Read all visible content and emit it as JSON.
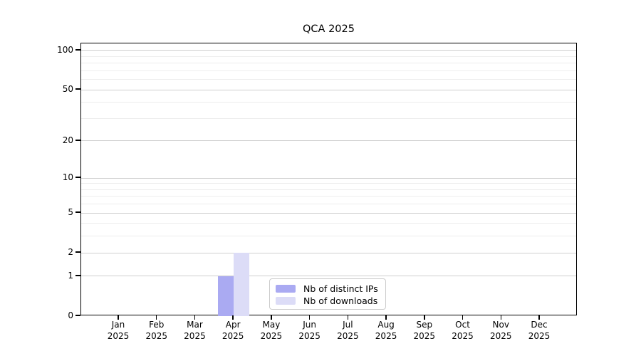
{
  "chart_data": {
    "type": "bar",
    "title": "QCA 2025",
    "categories": [
      "Jan",
      "Feb",
      "Mar",
      "Apr",
      "May",
      "Jun",
      "Jul",
      "Aug",
      "Sep",
      "Oct",
      "Nov",
      "Dec"
    ],
    "x_year": "2025",
    "series": [
      {
        "name": "Nb of distinct IPs",
        "color": "#aaaaf2",
        "values": [
          0,
          0,
          0,
          1,
          0,
          0,
          0,
          0,
          0,
          0,
          0,
          0
        ]
      },
      {
        "name": "Nb of downloads",
        "color": "#dcdcf7",
        "values": [
          0,
          0,
          0,
          2,
          0,
          0,
          0,
          0,
          0,
          0,
          0,
          0
        ]
      }
    ],
    "y_scale": "log1p",
    "ylim": [
      0,
      113
    ],
    "y_major_ticks": [
      0,
      1,
      2,
      5,
      10,
      20,
      50,
      100
    ],
    "y_minor_ticks": [
      3,
      4,
      6,
      7,
      8,
      9,
      30,
      40,
      60,
      70,
      80,
      90
    ],
    "grid": true,
    "legend_position": "inside-bottom-center"
  },
  "colors": {
    "grid_major": "#cfcfcf",
    "grid_minor": "#ededed",
    "axis": "#000000",
    "legend_border": "#cccccc"
  }
}
